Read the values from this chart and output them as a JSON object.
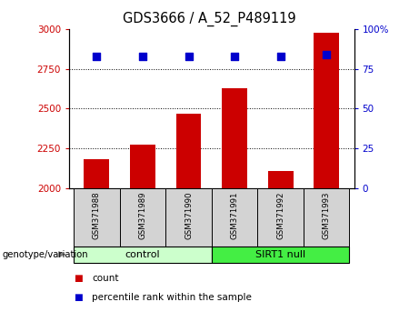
{
  "title": "GDS3666 / A_52_P489119",
  "samples": [
    "GSM371988",
    "GSM371989",
    "GSM371990",
    "GSM371991",
    "GSM371992",
    "GSM371993"
  ],
  "counts": [
    2185,
    2275,
    2470,
    2630,
    2110,
    2975
  ],
  "percentiles": [
    83,
    83,
    83,
    83,
    83,
    84
  ],
  "ylim_left": [
    2000,
    3000
  ],
  "ylim_right": [
    0,
    100
  ],
  "yticks_left": [
    2000,
    2250,
    2500,
    2750,
    3000
  ],
  "yticks_right": [
    0,
    25,
    50,
    75,
    100
  ],
  "bar_color": "#cc0000",
  "dot_color": "#0000cc",
  "groups": [
    {
      "label": "control",
      "span": [
        0,
        3
      ],
      "color": "#ccffcc"
    },
    {
      "label": "SIRT1 null",
      "span": [
        3,
        6
      ],
      "color": "#44ee44"
    }
  ],
  "genotype_label": "genotype/variation",
  "legend_count_label": "count",
  "legend_percentile_label": "percentile rank within the sample",
  "figsize": [
    4.61,
    3.54
  ],
  "dpi": 100,
  "label_box_color": "#d3d3d3",
  "right_tick_label_100": "100%"
}
